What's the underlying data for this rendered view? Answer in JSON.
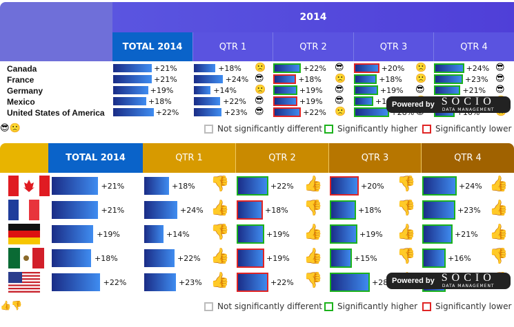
{
  "year": "2014",
  "headers": [
    "TOTAL 2014",
    "QTR 1",
    "QTR 2",
    "QTR 3",
    "QTR 4"
  ],
  "countries": [
    "Canada",
    "France",
    "Germany",
    "Mexico",
    "United States of America"
  ],
  "rows": [
    {
      "total": "+21%",
      "q": [
        "+18%",
        "+22%",
        "+20%",
        "+24%"
      ],
      "sig": [
        "none",
        "higher",
        "lower",
        "higher"
      ],
      "emo": [
        "sad",
        "cool",
        "sad",
        "cool"
      ],
      "thumb": [
        "down",
        "up",
        "down",
        "up"
      ]
    },
    {
      "total": "+21%",
      "q": [
        "+24%",
        "+18%",
        "+18%",
        "+23%"
      ],
      "sig": [
        "none",
        "lower",
        "higher",
        "higher"
      ],
      "emo": [
        "cool",
        "sad",
        "sad",
        "cool"
      ],
      "thumb": [
        "up",
        "down",
        "down",
        "up"
      ]
    },
    {
      "total": "+19%",
      "q": [
        "+14%",
        "+19%",
        "+19%",
        "+21%"
      ],
      "sig": [
        "none",
        "higher",
        "higher",
        "higher"
      ],
      "emo": [
        "sad",
        "cool",
        "cool",
        "cool"
      ],
      "thumb": [
        "down",
        "up",
        "up",
        "up"
      ]
    },
    {
      "total": "+18%",
      "q": [
        "+22%",
        "+19%",
        "+15%",
        "+16%"
      ],
      "sig": [
        "none",
        "lower",
        "higher",
        "higher"
      ],
      "emo": [
        "cool",
        "cool",
        "sad",
        "sad"
      ],
      "thumb": [
        "up",
        "up",
        "down",
        "down"
      ]
    },
    {
      "total": "+22%",
      "q": [
        "+23%",
        "+22%",
        "+28%",
        "+16%"
      ],
      "sig": [
        "none",
        "lower",
        "higher",
        "higher"
      ],
      "emo": [
        "cool",
        "sad",
        "cool",
        "sad"
      ],
      "thumb": [
        "up",
        "down",
        "up",
        "down"
      ]
    }
  ],
  "legend": {
    "same": "Not significantly different",
    "higher": "Significantly higher",
    "lower": "Significantly lower"
  },
  "powered": {
    "by": "Powered by",
    "brand": "SOCIO",
    "sub": "DATA MANAGEMENT"
  },
  "colors": {
    "higher": "#1bb21b",
    "lower": "#e02424",
    "same": "#bbbbbb"
  }
}
